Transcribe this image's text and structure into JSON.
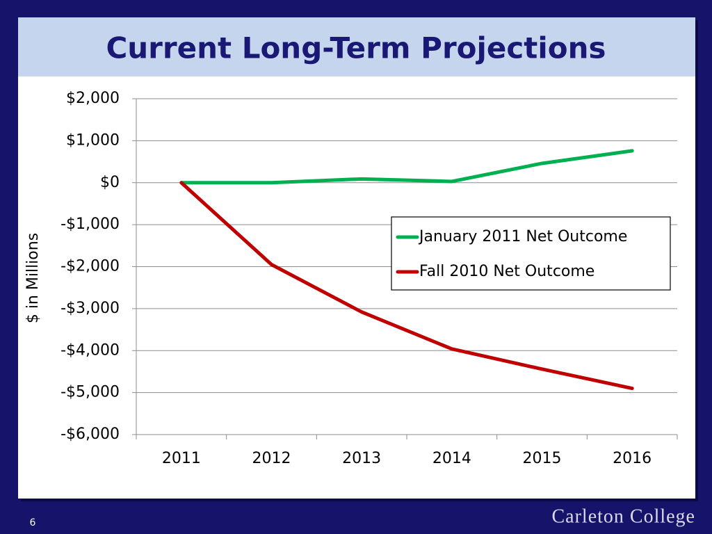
{
  "chart_data": {
    "type": "line",
    "title": "Current Long-Term Projections",
    "y_label": "$ in Millions",
    "categories": [
      "2011",
      "2012",
      "2013",
      "2014",
      "2015",
      "2016"
    ],
    "series": [
      {
        "name": "January 2011 Net Outcome",
        "color": "#00b050",
        "values": [
          0,
          0,
          90,
          30,
          460,
          760
        ]
      },
      {
        "name": "Fall 2010 Net Outcome",
        "color": "#c00000",
        "values": [
          0,
          -1950,
          -3080,
          -3960,
          -4440,
          -4900
        ]
      }
    ],
    "ylim": [
      -6000,
      2000
    ],
    "yticks": [
      {
        "value": -6000,
        "label": "-$6,000"
      },
      {
        "value": -5000,
        "label": "-$5,000"
      },
      {
        "value": -4000,
        "label": "-$4,000"
      },
      {
        "value": -3000,
        "label": "-$3,000"
      },
      {
        "value": -2000,
        "label": "-$2,000"
      },
      {
        "value": -1000,
        "label": "-$1,000"
      },
      {
        "value": 0,
        "label": "$0"
      },
      {
        "value": 1000,
        "label": "$1,000"
      },
      {
        "value": 2000,
        "label": "$2,000"
      }
    ],
    "grid": true
  },
  "footer": {
    "page": "6",
    "institution": "Carleton College"
  }
}
